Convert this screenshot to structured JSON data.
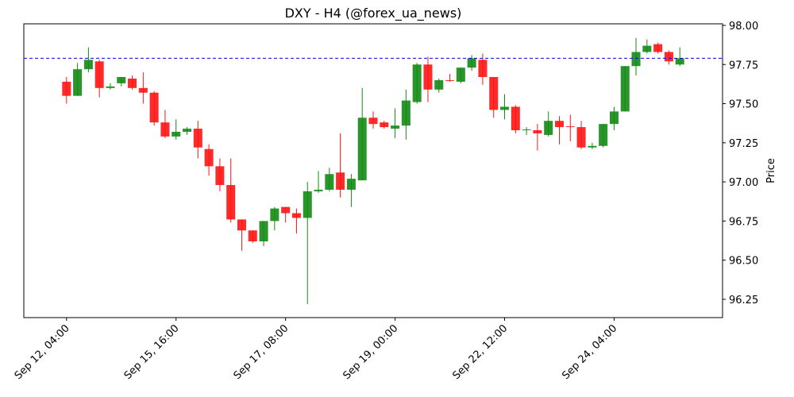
{
  "chart_data": {
    "type": "candlestick",
    "title": "DXY - H4 (@forex_ua_news)",
    "y_label": "Price",
    "x": [
      0,
      1,
      2,
      3,
      4,
      5,
      6,
      7,
      8,
      9,
      10,
      11,
      12,
      13,
      14,
      15,
      16,
      17,
      18,
      19,
      20,
      21,
      22,
      23,
      24,
      25,
      26,
      27,
      28,
      29,
      30,
      31,
      32,
      33,
      34,
      35,
      36,
      37,
      38,
      39,
      40,
      41,
      42,
      43,
      44,
      45,
      46,
      47,
      48,
      49,
      50,
      51,
      52,
      53,
      54,
      55,
      56
    ],
    "open": [
      97.64,
      97.55,
      97.72,
      97.77,
      97.6,
      97.63,
      97.66,
      97.6,
      97.57,
      97.38,
      97.29,
      97.32,
      97.34,
      97.21,
      97.1,
      96.98,
      96.76,
      96.69,
      96.62,
      96.75,
      96.84,
      96.8,
      96.77,
      96.94,
      96.95,
      97.06,
      96.95,
      97.01,
      97.41,
      97.38,
      97.34,
      97.36,
      97.51,
      97.75,
      97.59,
      97.65,
      97.64,
      97.73,
      97.78,
      97.67,
      97.46,
      97.48,
      97.33,
      97.33,
      97.3,
      97.39,
      97.355,
      97.35,
      97.22,
      97.23,
      97.37,
      97.45,
      97.74,
      97.83,
      97.88,
      97.83,
      97.75
    ],
    "high": [
      97.67,
      97.76,
      97.86,
      97.78,
      97.63,
      97.67,
      97.68,
      97.7,
      97.58,
      97.46,
      97.4,
      97.35,
      97.39,
      97.24,
      97.15,
      97.15,
      96.76,
      96.69,
      96.75,
      96.84,
      96.84,
      96.83,
      97.0,
      97.07,
      97.09,
      97.31,
      97.05,
      97.6,
      97.45,
      97.39,
      97.47,
      97.59,
      97.76,
      97.8,
      97.66,
      97.69,
      97.73,
      97.81,
      97.82,
      97.67,
      97.56,
      97.49,
      97.35,
      97.37,
      97.45,
      97.42,
      97.43,
      97.39,
      97.25,
      97.37,
      97.48,
      97.74,
      97.92,
      97.91,
      97.89,
      97.84,
      97.86
    ],
    "low": [
      97.5,
      97.55,
      97.7,
      97.54,
      97.59,
      97.61,
      97.59,
      97.5,
      97.36,
      97.28,
      97.27,
      97.3,
      97.15,
      97.04,
      96.94,
      96.74,
      96.56,
      96.61,
      96.59,
      96.69,
      96.74,
      96.67,
      96.22,
      96.93,
      96.94,
      96.9,
      96.84,
      97.01,
      97.34,
      97.34,
      97.28,
      97.27,
      97.5,
      97.51,
      97.57,
      97.64,
      97.63,
      97.71,
      97.62,
      97.41,
      97.4,
      97.31,
      97.3,
      97.2,
      97.29,
      97.24,
      97.26,
      97.21,
      97.21,
      97.22,
      97.33,
      97.45,
      97.68,
      97.82,
      97.82,
      97.75,
      97.74
    ],
    "close": [
      97.55,
      97.72,
      97.78,
      97.6,
      97.61,
      97.67,
      97.6,
      97.57,
      97.38,
      97.29,
      97.32,
      97.34,
      97.22,
      97.1,
      96.98,
      96.76,
      96.69,
      96.62,
      96.75,
      96.83,
      96.8,
      96.77,
      96.94,
      96.95,
      97.05,
      96.95,
      97.02,
      97.41,
      97.37,
      97.35,
      97.36,
      97.52,
      97.75,
      97.59,
      97.65,
      97.645,
      97.73,
      97.79,
      97.67,
      97.46,
      97.48,
      97.33,
      97.335,
      97.31,
      97.39,
      97.35,
      97.35,
      97.22,
      97.23,
      97.37,
      97.45,
      97.74,
      97.83,
      97.87,
      97.83,
      97.77,
      97.79
    ],
    "up_color": "#138a13",
    "down_color": "#ff1414",
    "hline": {
      "value": 97.79,
      "color": "#0000ff",
      "style": "dashed"
    },
    "xlim": [
      -3.9,
      59.9
    ],
    "ylim": [
      96.133,
      98.01
    ],
    "xticks": [
      {
        "value": 0,
        "label": "Sep 12, 04:00"
      },
      {
        "value": 10,
        "label": "Sep 15, 16:00"
      },
      {
        "value": 20,
        "label": "Sep 17, 08:00"
      },
      {
        "value": 30,
        "label": "Sep 19, 00:00"
      },
      {
        "value": 40,
        "label": "Sep 22, 12:00"
      },
      {
        "value": 50,
        "label": "Sep 24, 04:00"
      }
    ],
    "yticks": [
      {
        "value": 96.25,
        "label": "96.25"
      },
      {
        "value": 96.5,
        "label": "96.50"
      },
      {
        "value": 96.75,
        "label": "96.75"
      },
      {
        "value": 97,
        "label": "97.00"
      },
      {
        "value": 97.25,
        "label": "97.25"
      },
      {
        "value": 97.5,
        "label": "97.50"
      },
      {
        "value": 97.75,
        "label": "97.75"
      },
      {
        "value": 98,
        "label": "98.00"
      }
    ]
  }
}
